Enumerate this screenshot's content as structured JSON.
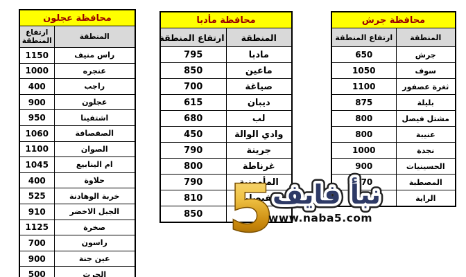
{
  "page": {
    "background": "#ffffff",
    "language": "ar"
  },
  "colors": {
    "table_title_bg": "#ffff00",
    "table_title_text": "#990000",
    "column_header_bg": "#d9d9d9",
    "table_border": "#000000",
    "watermark_navy": "#2e3a66",
    "watermark_gold": "#e8b33c",
    "watermark_url_text": "#0d0d0d"
  },
  "tables": [
    {
      "title": "محافظة عجلون",
      "col_region": "المنطقة",
      "col_elevation": "ارتفاع المنطقة",
      "rows": [
        {
          "region": "راس منيف",
          "elevation": "1150"
        },
        {
          "region": "عنجره",
          "elevation": "1000"
        },
        {
          "region": "راجب",
          "elevation": "400"
        },
        {
          "region": "عجلون",
          "elevation": "900"
        },
        {
          "region": "اشتفينا",
          "elevation": "950"
        },
        {
          "region": "الصفصافة",
          "elevation": "1060"
        },
        {
          "region": "الصوان",
          "elevation": "1100"
        },
        {
          "region": "ام الينابيع",
          "elevation": "1045"
        },
        {
          "region": "حلاوة",
          "elevation": "400"
        },
        {
          "region": "خربة الوهادنة",
          "elevation": "525"
        },
        {
          "region": "الجبل الاخضر",
          "elevation": "910"
        },
        {
          "region": "صخرة",
          "elevation": "1125"
        },
        {
          "region": "راسون",
          "elevation": "700"
        },
        {
          "region": "عين جنة",
          "elevation": "900"
        },
        {
          "region": "الحرث",
          "elevation": "500"
        }
      ]
    },
    {
      "title": "محافظة مأدبا",
      "col_region": "المنطقة",
      "col_elevation": "ارتفاع المنطقة",
      "rows": [
        {
          "region": "مادبا",
          "elevation": "795"
        },
        {
          "region": "ماعين",
          "elevation": "850"
        },
        {
          "region": "صياغة",
          "elevation": "700"
        },
        {
          "region": "ديبان",
          "elevation": "615"
        },
        {
          "region": "لب",
          "elevation": "680"
        },
        {
          "region": "وادي الوالة",
          "elevation": "450"
        },
        {
          "region": "جرينة",
          "elevation": "790"
        },
        {
          "region": "غرناطة",
          "elevation": "800"
        },
        {
          "region": "المأمونية",
          "elevation": "790"
        },
        {
          "region": "الفيصلية",
          "elevation": "810"
        },
        {
          "region": "",
          "elevation": "850"
        }
      ]
    },
    {
      "title": "محافظة جرش",
      "col_region": "المنطقة",
      "col_elevation": "ارتفاع المنطقة",
      "rows": [
        {
          "region": "جرش",
          "elevation": "650"
        },
        {
          "region": "سوف",
          "elevation": "1050"
        },
        {
          "region": "ثغرة عصفور",
          "elevation": "1100"
        },
        {
          "region": "بليلة",
          "elevation": "875"
        },
        {
          "region": "مشتل فيصل",
          "elevation": "800"
        },
        {
          "region": "عنيبة",
          "elevation": "800"
        },
        {
          "region": "نجدة",
          "elevation": "1000"
        },
        {
          "region": "الحسينيات",
          "elevation": "900"
        },
        {
          "region": "المصطبة",
          "elevation": "570"
        },
        {
          "region": "الراية",
          "elevation": "930"
        }
      ]
    }
  ],
  "watermark": {
    "number": "5",
    "brand": "نبأ فايف",
    "url": "www.naba5.com"
  }
}
